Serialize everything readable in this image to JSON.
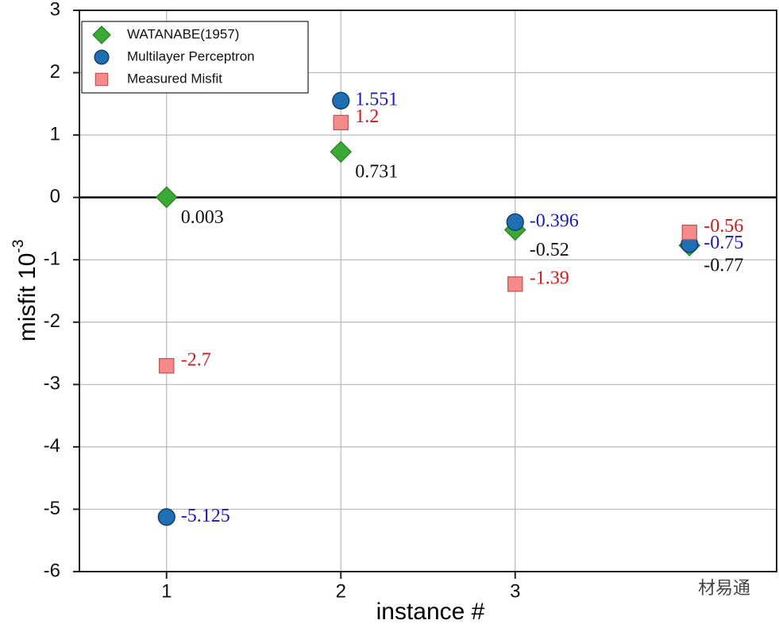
{
  "chart_data": {
    "type": "scatter",
    "x_label": "instance #",
    "y_label": "misfit 10",
    "y_label_exponent": "-3",
    "watermark": "材易通",
    "x": [
      1,
      2,
      3,
      4
    ],
    "xlim": [
      0.5,
      4.5
    ],
    "xticks": [
      1,
      2,
      3
    ],
    "ylim": [
      -6,
      3
    ],
    "yticks": [
      -6,
      -5,
      -4,
      -3,
      -2,
      -1,
      0,
      1,
      2,
      3
    ],
    "grid": true,
    "legend": "upper left",
    "series": [
      {
        "name": "WATANABE(1957)",
        "color": "#3aaa35",
        "marker": "diamond",
        "label_color": "#111111",
        "values": [
          0.003,
          0.731,
          -0.52,
          -0.77
        ]
      },
      {
        "name": "Multilayer Perceptron",
        "color": "#1f6fb4",
        "marker": "circle",
        "label_color": "#1a1ab8",
        "values": [
          -5.125,
          1.551,
          -0.396,
          -0.75
        ]
      },
      {
        "name": "Measured Misfit",
        "color": "#f48a8a",
        "marker": "square",
        "label_color": "#d11a1a",
        "values": [
          -2.7,
          1.2,
          -1.39,
          -0.56
        ]
      }
    ]
  }
}
